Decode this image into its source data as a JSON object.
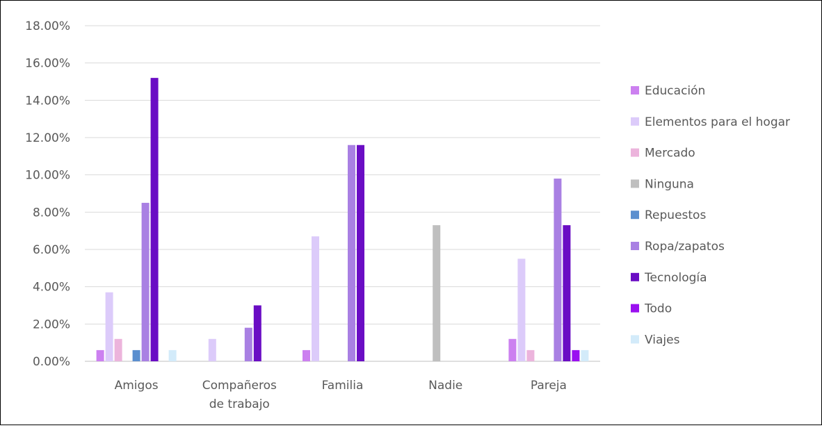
{
  "chart_data": {
    "type": "bar",
    "title": "",
    "xlabel": "",
    "ylabel": "",
    "ylim": [
      0,
      18
    ],
    "y_format": "percent_2dp",
    "yticks": [
      "0.00%",
      "2.00%",
      "4.00%",
      "6.00%",
      "8.00%",
      "10.00%",
      "12.00%",
      "14.00%",
      "16.00%",
      "18.00%"
    ],
    "grid": true,
    "legend_position": "right",
    "categories": [
      {
        "lines": [
          "Amigos"
        ]
      },
      {
        "lines": [
          "Compañeros",
          "de trabajo"
        ]
      },
      {
        "lines": [
          "Familia"
        ]
      },
      {
        "lines": [
          "Nadie"
        ]
      },
      {
        "lines": [
          "Pareja"
        ]
      }
    ],
    "series": [
      {
        "name": "Educación",
        "color": "#cc80f0",
        "values": [
          0.6,
          0.0,
          0.6,
          0.0,
          1.2
        ]
      },
      {
        "name": "Elementos para el hogar",
        "color": "#dccbfa",
        "values": [
          3.7,
          1.2,
          6.7,
          0.0,
          5.5
        ]
      },
      {
        "name": "Mercado",
        "color": "#ecb4dc",
        "values": [
          1.2,
          0.0,
          0.0,
          0.0,
          0.6
        ]
      },
      {
        "name": "Ninguna",
        "color": "#bfbfbf",
        "values": [
          0.0,
          0.0,
          0.0,
          7.3,
          0.0
        ]
      },
      {
        "name": "Repuestos",
        "color": "#5b8fcf",
        "values": [
          0.6,
          0.0,
          0.0,
          0.0,
          0.0
        ]
      },
      {
        "name": "Ropa/zapatos",
        "color": "#a980e3",
        "values": [
          8.5,
          1.8,
          11.6,
          0.0,
          9.8
        ]
      },
      {
        "name": "Tecnología",
        "color": "#6a0dc4",
        "values": [
          15.2,
          3.0,
          11.6,
          0.0,
          7.3
        ]
      },
      {
        "name": "Todo",
        "color": "#9a10f0",
        "values": [
          0.0,
          0.0,
          0.0,
          0.0,
          0.6
        ]
      },
      {
        "name": "Viajes",
        "color": "#d3ebfa",
        "values": [
          0.6,
          0.0,
          0.0,
          0.0,
          0.6
        ]
      }
    ]
  }
}
